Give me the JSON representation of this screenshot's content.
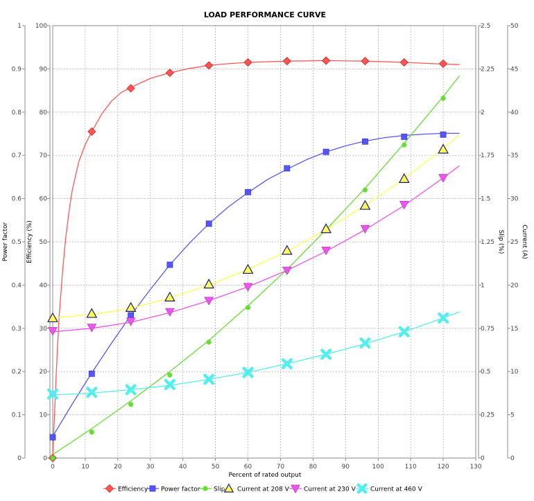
{
  "chart_data": {
    "type": "line",
    "title": "LOAD PERFORMANCE CURVE",
    "xlabel": "Percent of rated output",
    "xlim": [
      0,
      130
    ],
    "xticks": [
      "0",
      "10",
      "20",
      "30",
      "40",
      "50",
      "60",
      "70",
      "80",
      "90",
      "100",
      "110",
      "120",
      "130"
    ],
    "grid": true,
    "legend_position": "bottom",
    "axes": {
      "power_factor": {
        "label": "Power factor",
        "range": [
          0,
          1
        ],
        "ticks": [
          "0",
          "0.1",
          "0.2",
          "0.3",
          "0.4",
          "0.5",
          "0.6",
          "0.7",
          "0.8",
          "0.9",
          "1"
        ]
      },
      "efficiency": {
        "label": "Efficiency (%)",
        "range": [
          0,
          100
        ],
        "ticks": [
          "0",
          "10",
          "20",
          "30",
          "40",
          "50",
          "60",
          "70",
          "80",
          "90",
          "100"
        ]
      },
      "slip": {
        "label": "Slip (%)",
        "range": [
          0,
          2.5
        ],
        "ticks": [
          "0",
          "0.25",
          "0.5",
          "0.75",
          "1",
          "1.25",
          "1.5",
          "1.75",
          "2",
          "2.25",
          "2.5"
        ]
      },
      "current": {
        "label": "Current (A)",
        "range": [
          0,
          50
        ],
        "ticks": [
          "0",
          "5",
          "10",
          "15",
          "20",
          "25",
          "30",
          "35",
          "40",
          "45",
          "50"
        ]
      }
    },
    "series": [
      {
        "name": "Efficiency",
        "axis": "efficiency",
        "color": "#ff5555",
        "marker": "diamond",
        "x": [
          0,
          12,
          24,
          36,
          48,
          60,
          72,
          84,
          96,
          108,
          120
        ],
        "y": [
          0,
          75.5,
          85.5,
          89.1,
          90.8,
          91.5,
          91.8,
          91.9,
          91.8,
          91.5,
          91.2
        ],
        "curve_x": [
          0,
          0.5,
          1,
          1.5,
          2,
          3,
          4,
          5,
          6,
          8,
          10,
          12,
          15,
          18,
          21,
          24,
          30,
          36,
          42,
          48,
          54,
          60,
          72,
          84,
          96,
          108,
          120,
          125
        ],
        "curve_y": [
          0,
          9,
          18,
          26,
          33,
          43,
          51,
          57,
          62,
          68.5,
          72.5,
          75.5,
          79.5,
          82.5,
          84.5,
          85.7,
          87.8,
          89.1,
          90.1,
          90.8,
          91.2,
          91.5,
          91.8,
          91.9,
          91.8,
          91.5,
          91.1,
          91.0
        ]
      },
      {
        "name": "Power factor",
        "axis": "power_factor",
        "color": "#5555ff",
        "marker": "square",
        "x": [
          0,
          12,
          24,
          36,
          48,
          60,
          72,
          84,
          96,
          108,
          120
        ],
        "y": [
          0.048,
          0.195,
          0.33,
          0.447,
          0.542,
          0.615,
          0.67,
          0.708,
          0.732,
          0.743,
          0.748
        ],
        "curve_x": [
          0,
          6,
          12,
          18,
          24,
          30,
          36,
          42,
          48,
          54,
          60,
          66,
          72,
          78,
          84,
          90,
          96,
          102,
          108,
          114,
          120,
          125
        ],
        "curve_y": [
          0.05,
          0.125,
          0.197,
          0.265,
          0.33,
          0.39,
          0.447,
          0.497,
          0.542,
          0.581,
          0.614,
          0.644,
          0.668,
          0.69,
          0.708,
          0.722,
          0.733,
          0.741,
          0.746,
          0.749,
          0.751,
          0.751
        ]
      },
      {
        "name": "Slip",
        "axis": "slip",
        "color": "#66dd33",
        "marker": "circle",
        "x": [
          0,
          12,
          24,
          36,
          48,
          60,
          72,
          84,
          96,
          108,
          120
        ],
        "y": [
          0,
          0.15,
          0.31,
          0.48,
          0.67,
          0.87,
          1.08,
          1.32,
          1.55,
          1.81,
          2.08
        ],
        "curve_x": [
          0,
          12,
          24,
          36,
          48,
          60,
          72,
          84,
          96,
          108,
          120,
          125
        ],
        "curve_y": [
          0.02,
          0.17,
          0.33,
          0.5,
          0.68,
          0.88,
          1.09,
          1.32,
          1.56,
          1.82,
          2.09,
          2.21
        ]
      },
      {
        "name": "Current at 208 V",
        "axis": "current",
        "color": "#ffff55",
        "marker": "triangle-up",
        "x": [
          0,
          12,
          24,
          36,
          48,
          60,
          72,
          84,
          96,
          108,
          120
        ],
        "y": [
          16.2,
          16.7,
          17.4,
          18.6,
          20.1,
          21.8,
          24.0,
          26.5,
          29.2,
          32.3,
          35.7
        ],
        "curve_x": [
          0,
          12,
          24,
          36,
          48,
          60,
          72,
          84,
          96,
          108,
          120,
          125
        ],
        "curve_y": [
          16.2,
          16.6,
          17.3,
          18.5,
          20.0,
          21.8,
          23.9,
          26.4,
          29.2,
          32.3,
          35.8,
          37.4
        ]
      },
      {
        "name": "Current at 230 V",
        "axis": "current",
        "color": "#ee55ee",
        "marker": "triangle-down",
        "x": [
          0,
          12,
          24,
          36,
          48,
          60,
          72,
          84,
          96,
          108,
          120
        ],
        "y": [
          14.7,
          15.1,
          15.8,
          16.9,
          18.2,
          19.8,
          21.7,
          24.0,
          26.5,
          29.3,
          32.4
        ],
        "curve_x": [
          0,
          12,
          24,
          36,
          48,
          60,
          72,
          84,
          96,
          108,
          120,
          125
        ],
        "curve_y": [
          14.6,
          15.0,
          15.7,
          16.8,
          18.2,
          19.8,
          21.7,
          23.9,
          26.4,
          29.2,
          32.4,
          33.8
        ]
      },
      {
        "name": "Current at 460 V",
        "axis": "current",
        "color": "#55eeee",
        "marker": "cross",
        "x": [
          0,
          12,
          24,
          36,
          48,
          60,
          72,
          84,
          96,
          108,
          120
        ],
        "y": [
          7.4,
          7.6,
          7.9,
          8.5,
          9.1,
          9.9,
          10.9,
          12.0,
          13.3,
          14.6,
          16.2
        ],
        "curve_x": [
          0,
          12,
          24,
          36,
          48,
          60,
          72,
          84,
          96,
          108,
          120,
          125
        ],
        "curve_y": [
          7.3,
          7.5,
          7.9,
          8.4,
          9.1,
          9.9,
          10.9,
          12.0,
          13.2,
          14.6,
          16.2,
          16.9
        ]
      }
    ]
  }
}
